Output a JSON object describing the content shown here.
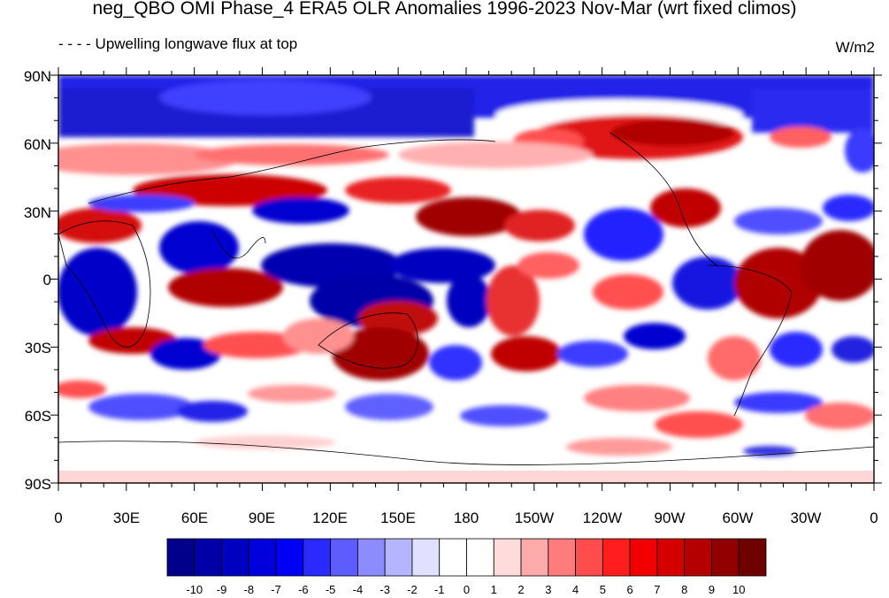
{
  "title": "neg_QBO OMI Phase_4 ERA5 OLR Anomalies 1996-2023 Nov-Mar (wrt fixed climos)",
  "legend_text": "- - - -  Upwelling longwave flux at top",
  "units": "W/m2",
  "y_ticks": [
    "90N",
    "60N",
    "30N",
    "0",
    "30S",
    "60S",
    "90S"
  ],
  "x_ticks": [
    "0",
    "30E",
    "60E",
    "90E",
    "120E",
    "150E",
    "180",
    "150W",
    "120W",
    "90W",
    "60W",
    "30W",
    "0"
  ],
  "colorbar": {
    "labels": [
      "-10",
      "-9",
      "-8",
      "-7",
      "-6",
      "-5",
      "-4",
      "-3",
      "-2",
      "-1",
      "0",
      "1",
      "2",
      "3",
      "4",
      "5",
      "6",
      "7",
      "8",
      "9",
      "10"
    ],
    "colors": [
      "#00008a",
      "#0000a8",
      "#0000c0",
      "#0000dc",
      "#0000f5",
      "#2a2aff",
      "#5c5cff",
      "#8c8cff",
      "#b4b4ff",
      "#e0e0ff",
      "#ffffff",
      "#ffffff",
      "#ffdcdc",
      "#ffaaaa",
      "#ff7c7c",
      "#ff4c4c",
      "#ff1e1e",
      "#f00000",
      "#d40000",
      "#b40000",
      "#900000",
      "#6e0000"
    ]
  },
  "colors": {
    "deep_blue": "#0000c0",
    "blue": "#3a3aff",
    "light_blue": "#aab2ff",
    "white": "#ffffff",
    "pink": "#ffc8c8",
    "red": "#ee1010",
    "dark_red": "#b40000"
  }
}
